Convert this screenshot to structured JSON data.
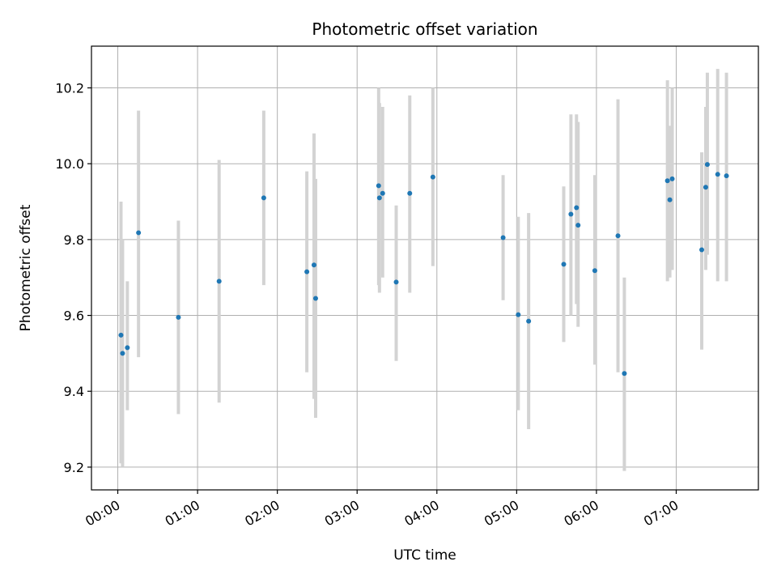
{
  "chart_data": {
    "type": "scatter",
    "title": "Photometric offset variation",
    "xlabel": "UTC time",
    "ylabel": "Photometric offset",
    "x_unit": "hours",
    "xlim": [
      -0.33,
      8.03
    ],
    "ylim": [
      9.14,
      10.31
    ],
    "x_ticks": [
      {
        "value": 0,
        "label": "00:00"
      },
      {
        "value": 1,
        "label": "01:00"
      },
      {
        "value": 2,
        "label": "02:00"
      },
      {
        "value": 3,
        "label": "03:00"
      },
      {
        "value": 4,
        "label": "04:00"
      },
      {
        "value": 5,
        "label": "05:00"
      },
      {
        "value": 6,
        "label": "06:00"
      },
      {
        "value": 7,
        "label": "07:00"
      }
    ],
    "y_ticks": [
      {
        "value": 9.2,
        "label": "9.2"
      },
      {
        "value": 9.4,
        "label": "9.4"
      },
      {
        "value": 9.6,
        "label": "9.6"
      },
      {
        "value": 9.8,
        "label": "9.8"
      },
      {
        "value": 10.0,
        "label": "10.0"
      },
      {
        "value": 10.2,
        "label": "10.2"
      }
    ],
    "grid": true,
    "point_color": "#1f77b4",
    "errorbar_color": "#d3d3d3",
    "points": [
      {
        "x": 0.04,
        "y": 9.548,
        "ylow": 9.21,
        "yhigh": 9.9
      },
      {
        "x": 0.06,
        "y": 9.5,
        "ylow": 9.2,
        "yhigh": 9.8
      },
      {
        "x": 0.12,
        "y": 9.515,
        "ylow": 9.35,
        "yhigh": 9.69
      },
      {
        "x": 0.26,
        "y": 9.818,
        "ylow": 9.49,
        "yhigh": 10.14
      },
      {
        "x": 0.76,
        "y": 9.595,
        "ylow": 9.34,
        "yhigh": 9.85
      },
      {
        "x": 1.27,
        "y": 9.69,
        "ylow": 9.37,
        "yhigh": 10.01
      },
      {
        "x": 1.83,
        "y": 9.91,
        "ylow": 9.68,
        "yhigh": 10.14
      },
      {
        "x": 2.37,
        "y": 9.715,
        "ylow": 9.45,
        "yhigh": 9.98
      },
      {
        "x": 2.46,
        "y": 9.733,
        "ylow": 9.38,
        "yhigh": 10.08
      },
      {
        "x": 2.48,
        "y": 9.645,
        "ylow": 9.33,
        "yhigh": 9.96
      },
      {
        "x": 3.27,
        "y": 9.942,
        "ylow": 9.68,
        "yhigh": 10.2
      },
      {
        "x": 3.28,
        "y": 9.91,
        "ylow": 9.66,
        "yhigh": 10.16
      },
      {
        "x": 3.32,
        "y": 9.922,
        "ylow": 9.7,
        "yhigh": 10.15
      },
      {
        "x": 3.49,
        "y": 9.688,
        "ylow": 9.48,
        "yhigh": 9.89
      },
      {
        "x": 3.66,
        "y": 9.922,
        "ylow": 9.66,
        "yhigh": 10.18
      },
      {
        "x": 3.95,
        "y": 9.965,
        "ylow": 9.73,
        "yhigh": 10.2
      },
      {
        "x": 4.83,
        "y": 9.805,
        "ylow": 9.64,
        "yhigh": 9.97
      },
      {
        "x": 5.02,
        "y": 9.602,
        "ylow": 9.35,
        "yhigh": 9.86
      },
      {
        "x": 5.15,
        "y": 9.585,
        "ylow": 9.3,
        "yhigh": 9.87
      },
      {
        "x": 5.59,
        "y": 9.735,
        "ylow": 9.53,
        "yhigh": 9.94
      },
      {
        "x": 5.68,
        "y": 9.867,
        "ylow": 9.6,
        "yhigh": 10.13
      },
      {
        "x": 5.75,
        "y": 9.884,
        "ylow": 9.63,
        "yhigh": 10.13
      },
      {
        "x": 5.77,
        "y": 9.838,
        "ylow": 9.57,
        "yhigh": 10.11
      },
      {
        "x": 5.98,
        "y": 9.718,
        "ylow": 9.47,
        "yhigh": 9.97
      },
      {
        "x": 6.27,
        "y": 9.81,
        "ylow": 9.45,
        "yhigh": 10.17
      },
      {
        "x": 6.35,
        "y": 9.447,
        "ylow": 9.19,
        "yhigh": 9.7
      },
      {
        "x": 6.89,
        "y": 9.955,
        "ylow": 9.69,
        "yhigh": 10.22
      },
      {
        "x": 6.92,
        "y": 9.905,
        "ylow": 9.7,
        "yhigh": 10.1
      },
      {
        "x": 6.95,
        "y": 9.96,
        "ylow": 9.72,
        "yhigh": 10.2
      },
      {
        "x": 7.32,
        "y": 9.773,
        "ylow": 9.51,
        "yhigh": 10.03
      },
      {
        "x": 7.37,
        "y": 9.938,
        "ylow": 9.72,
        "yhigh": 10.15
      },
      {
        "x": 7.39,
        "y": 9.998,
        "ylow": 9.76,
        "yhigh": 10.24
      },
      {
        "x": 7.52,
        "y": 9.972,
        "ylow": 9.69,
        "yhigh": 10.25
      },
      {
        "x": 7.63,
        "y": 9.968,
        "ylow": 9.69,
        "yhigh": 10.24
      }
    ]
  }
}
